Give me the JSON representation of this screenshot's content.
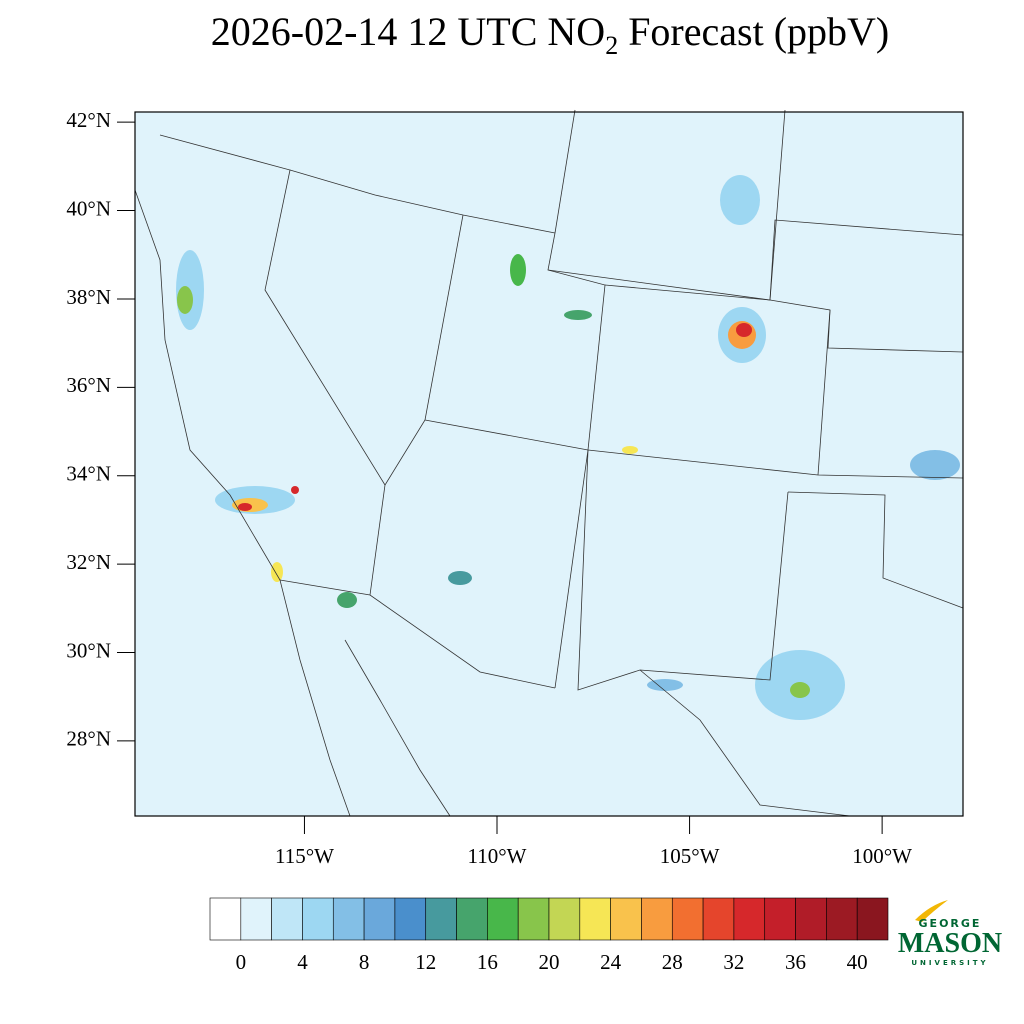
{
  "title": {
    "main": "2026-02-14 12 UTC NO",
    "subscript": "2",
    "rest": " Forecast (ppbV)"
  },
  "map": {
    "xlim": [
      -119.4,
      -97.9
    ],
    "ylim": [
      26.3,
      42.23
    ],
    "yticks": [
      {
        "value": 28,
        "label": "28°N"
      },
      {
        "value": 30,
        "label": "30°N"
      },
      {
        "value": 32,
        "label": "32°N"
      },
      {
        "value": 34,
        "label": "34°N"
      },
      {
        "value": 36,
        "label": "36°N"
      },
      {
        "value": 38,
        "label": "38°N"
      },
      {
        "value": 40,
        "label": "40°N"
      },
      {
        "value": 42,
        "label": "42°N"
      }
    ],
    "xticks": [
      {
        "value": -115,
        "label": "115°W"
      },
      {
        "value": -110,
        "label": "110°W"
      },
      {
        "value": -105,
        "label": "105°W"
      },
      {
        "value": -100,
        "label": "100°W"
      }
    ]
  },
  "colorbar": {
    "lim": [
      -2,
      42
    ],
    "ticks": [
      0,
      4,
      8,
      12,
      16,
      20,
      24,
      28,
      32,
      36,
      40
    ],
    "colors": [
      "#ffffff",
      "#e0f3fb",
      "#bfe6f7",
      "#9dd7f2",
      "#83bfe6",
      "#6aa8db",
      "#4a8fcc",
      "#479a9e",
      "#46a46c",
      "#48b74a",
      "#88c54b",
      "#c3d654",
      "#f6e655",
      "#f9c24c",
      "#f89c3f",
      "#f26f30",
      "#e5452c",
      "#d6282b",
      "#c41f2a",
      "#b01c28",
      "#9c1a23",
      "#8a161f"
    ]
  },
  "logo": {
    "top": "GEORGE",
    "name": "MASON",
    "bottom": "UNIVERSITY"
  }
}
